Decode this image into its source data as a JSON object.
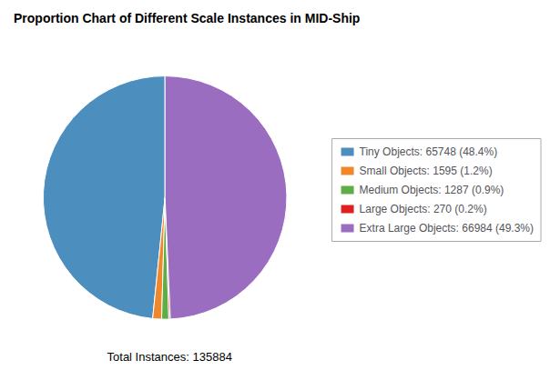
{
  "chart_data": {
    "type": "pie",
    "title": "Proportion Chart of Different Scale Instances in MID-Ship",
    "categories": [
      "Tiny Objects: 65748 (48.4%)",
      "Small Objects: 1595 (1.2%)",
      "Medium Objects: 1287 (0.9%)",
      "Large Objects: 270 (0.2%)",
      "Extra Large Objects: 66984 (49.3%)"
    ],
    "values": [
      65748,
      1595,
      1287,
      270,
      66984
    ],
    "colors": [
      "#4C8EBE",
      "#F0872A",
      "#5FAD46",
      "#E02020",
      "#9B6DC0"
    ],
    "annotations": [
      "Total Instances: 135884"
    ],
    "legend": "right"
  }
}
